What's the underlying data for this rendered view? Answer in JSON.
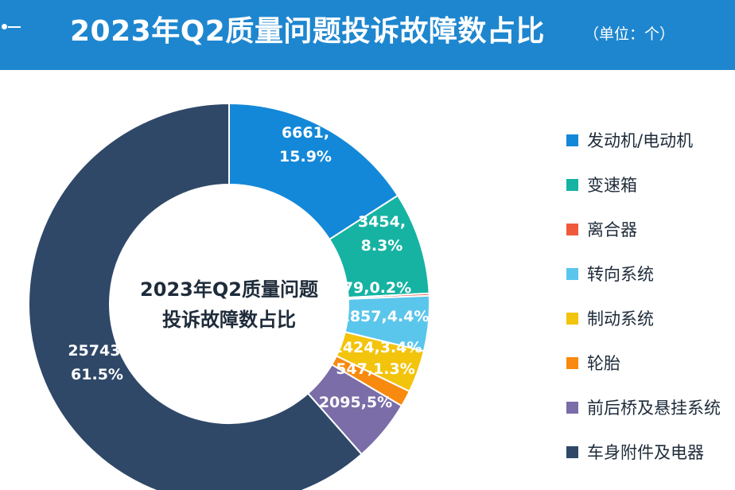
{
  "header": {
    "title": "2023年Q2质量问题投诉故障数占比",
    "unit": "（单位：个）"
  },
  "colors": {
    "header_bg": "#1e86cf"
  },
  "chart_data": {
    "type": "pie",
    "donut": true,
    "center_text": [
      "2023年Q2质量问题",
      "投诉故障数占比"
    ],
    "legend_position": "right",
    "slices": [
      {
        "name": "发动机/电动机",
        "value": 6661,
        "percent": "15.9%",
        "label": "6661,\n15.9%",
        "color": "#1488d8"
      },
      {
        "name": "变速箱",
        "value": 3454,
        "percent": "8.3%",
        "label": "3454,\n8.3%",
        "color": "#16b3a3"
      },
      {
        "name": "离合器",
        "value": 79,
        "percent": "0.2%",
        "label": "79,0.2%",
        "color": "#f05a3c"
      },
      {
        "name": "转向系统",
        "value": 1857,
        "percent": "4.4%",
        "label": "1857,4.4%",
        "color": "#5bc6ec"
      },
      {
        "name": "制动系统",
        "value": 1424,
        "percent": "3.4%",
        "label": "1424,3.4%",
        "color": "#f2c40c"
      },
      {
        "name": "轮胎",
        "value": 547,
        "percent": "1.3%",
        "label": "547,1.3%",
        "color": "#f78a0f"
      },
      {
        "name": "前后桥及悬挂系统",
        "value": 2095,
        "percent": "5%",
        "label": "2095,5%",
        "color": "#7a6da8"
      },
      {
        "name": "车身附件及电器",
        "value": 25743,
        "percent": "61.5%",
        "label": "25743,\n61.5%",
        "color": "#2f4868"
      }
    ]
  }
}
